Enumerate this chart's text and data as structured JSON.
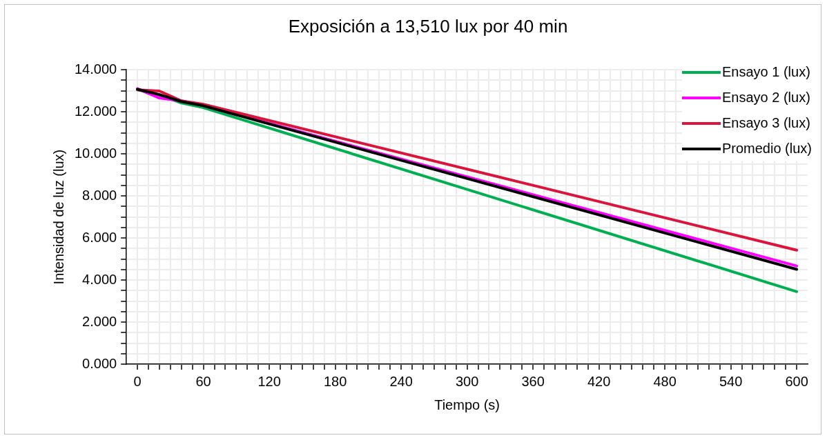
{
  "chart_data": {
    "type": "line",
    "title": "Exposición a 13,510 lux por 40 min",
    "xlabel": "Tiempo (s)",
    "ylabel": "Intensidad de luz (lux)",
    "xlim": [
      -10,
      610
    ],
    "xticks": [
      {
        "value": 0,
        "label": "0"
      },
      {
        "value": 10,
        "label": null
      },
      {
        "value": 20,
        "label": null
      },
      {
        "value": 30,
        "label": null
      },
      {
        "value": 40,
        "label": null
      },
      {
        "value": 50,
        "label": null
      },
      {
        "value": 60,
        "label": "60"
      },
      {
        "value": 70,
        "label": null
      },
      {
        "value": 80,
        "label": null
      },
      {
        "value": 90,
        "label": null
      },
      {
        "value": 100,
        "label": null
      },
      {
        "value": 110,
        "label": null
      },
      {
        "value": 120,
        "label": "120"
      },
      {
        "value": 130,
        "label": null
      },
      {
        "value": 140,
        "label": null
      },
      {
        "value": 150,
        "label": null
      },
      {
        "value": 160,
        "label": null
      },
      {
        "value": 170,
        "label": null
      },
      {
        "value": 180,
        "label": "180"
      },
      {
        "value": 190,
        "label": null
      },
      {
        "value": 200,
        "label": null
      },
      {
        "value": 210,
        "label": null
      },
      {
        "value": 220,
        "label": null
      },
      {
        "value": 230,
        "label": null
      },
      {
        "value": 240,
        "label": "240"
      },
      {
        "value": 250,
        "label": null
      },
      {
        "value": 260,
        "label": null
      },
      {
        "value": 270,
        "label": null
      },
      {
        "value": 280,
        "label": null
      },
      {
        "value": 290,
        "label": null
      },
      {
        "value": 300,
        "label": "300"
      },
      {
        "value": 310,
        "label": null
      },
      {
        "value": 320,
        "label": null
      },
      {
        "value": 330,
        "label": null
      },
      {
        "value": 340,
        "label": null
      },
      {
        "value": 350,
        "label": null
      },
      {
        "value": 360,
        "label": "360"
      },
      {
        "value": 370,
        "label": null
      },
      {
        "value": 380,
        "label": null
      },
      {
        "value": 390,
        "label": null
      },
      {
        "value": 400,
        "label": null
      },
      {
        "value": 410,
        "label": null
      },
      {
        "value": 420,
        "label": "420"
      },
      {
        "value": 430,
        "label": null
      },
      {
        "value": 440,
        "label": null
      },
      {
        "value": 450,
        "label": null
      },
      {
        "value": 460,
        "label": null
      },
      {
        "value": 470,
        "label": null
      },
      {
        "value": 480,
        "label": "480"
      },
      {
        "value": 490,
        "label": null
      },
      {
        "value": 500,
        "label": null
      },
      {
        "value": 510,
        "label": null
      },
      {
        "value": 520,
        "label": null
      },
      {
        "value": 530,
        "label": null
      },
      {
        "value": 540,
        "label": "540"
      },
      {
        "value": 550,
        "label": null
      },
      {
        "value": 560,
        "label": null
      },
      {
        "value": 570,
        "label": null
      },
      {
        "value": 580,
        "label": null
      },
      {
        "value": 590,
        "label": null
      },
      {
        "value": 600,
        "label": "600"
      }
    ],
    "ylim": [
      0,
      14
    ],
    "yticks": [
      {
        "value": 0,
        "label": "0.000"
      },
      {
        "value": 0.5,
        "label": null
      },
      {
        "value": 1,
        "label": null
      },
      {
        "value": 1.5,
        "label": null
      },
      {
        "value": 2,
        "label": "2.000"
      },
      {
        "value": 2.5,
        "label": null
      },
      {
        "value": 3,
        "label": null
      },
      {
        "value": 3.5,
        "label": null
      },
      {
        "value": 4,
        "label": "4.000"
      },
      {
        "value": 4.5,
        "label": null
      },
      {
        "value": 5,
        "label": null
      },
      {
        "value": 5.5,
        "label": null
      },
      {
        "value": 6,
        "label": "6.000"
      },
      {
        "value": 6.5,
        "label": null
      },
      {
        "value": 7,
        "label": null
      },
      {
        "value": 7.5,
        "label": null
      },
      {
        "value": 8,
        "label": "8.000"
      },
      {
        "value": 8.5,
        "label": null
      },
      {
        "value": 9,
        "label": null
      },
      {
        "value": 9.5,
        "label": null
      },
      {
        "value": 10,
        "label": "10.000"
      },
      {
        "value": 10.5,
        "label": null
      },
      {
        "value": 11,
        "label": null
      },
      {
        "value": 11.5,
        "label": null
      },
      {
        "value": 12,
        "label": "12.000"
      },
      {
        "value": 12.5,
        "label": null
      },
      {
        "value": 13,
        "label": null
      },
      {
        "value": 13.5,
        "label": null
      },
      {
        "value": 14,
        "label": "14.000"
      }
    ],
    "x": [
      0,
      20,
      40,
      60,
      600
    ],
    "series": [
      {
        "name": "Ensayo 1 (lux)",
        "color": "#00b050",
        "values": [
          13.05,
          12.8,
          12.42,
          12.2,
          3.45
        ]
      },
      {
        "name": "Ensayo 2 (lux)",
        "color": "#ff00ff",
        "values": [
          13.1,
          12.66,
          12.52,
          12.3,
          4.67
        ]
      },
      {
        "name": "Ensayo 3 (lux)",
        "color": "#dc143c",
        "values": [
          13.05,
          12.99,
          12.52,
          12.36,
          5.42
        ]
      },
      {
        "name": "Promedio (lux)",
        "color": "#000000",
        "values": [
          13.07,
          12.82,
          12.49,
          12.29,
          4.51
        ]
      }
    ],
    "grid": true,
    "legend": "top right",
    "marker": "none",
    "line_style": "solid"
  }
}
